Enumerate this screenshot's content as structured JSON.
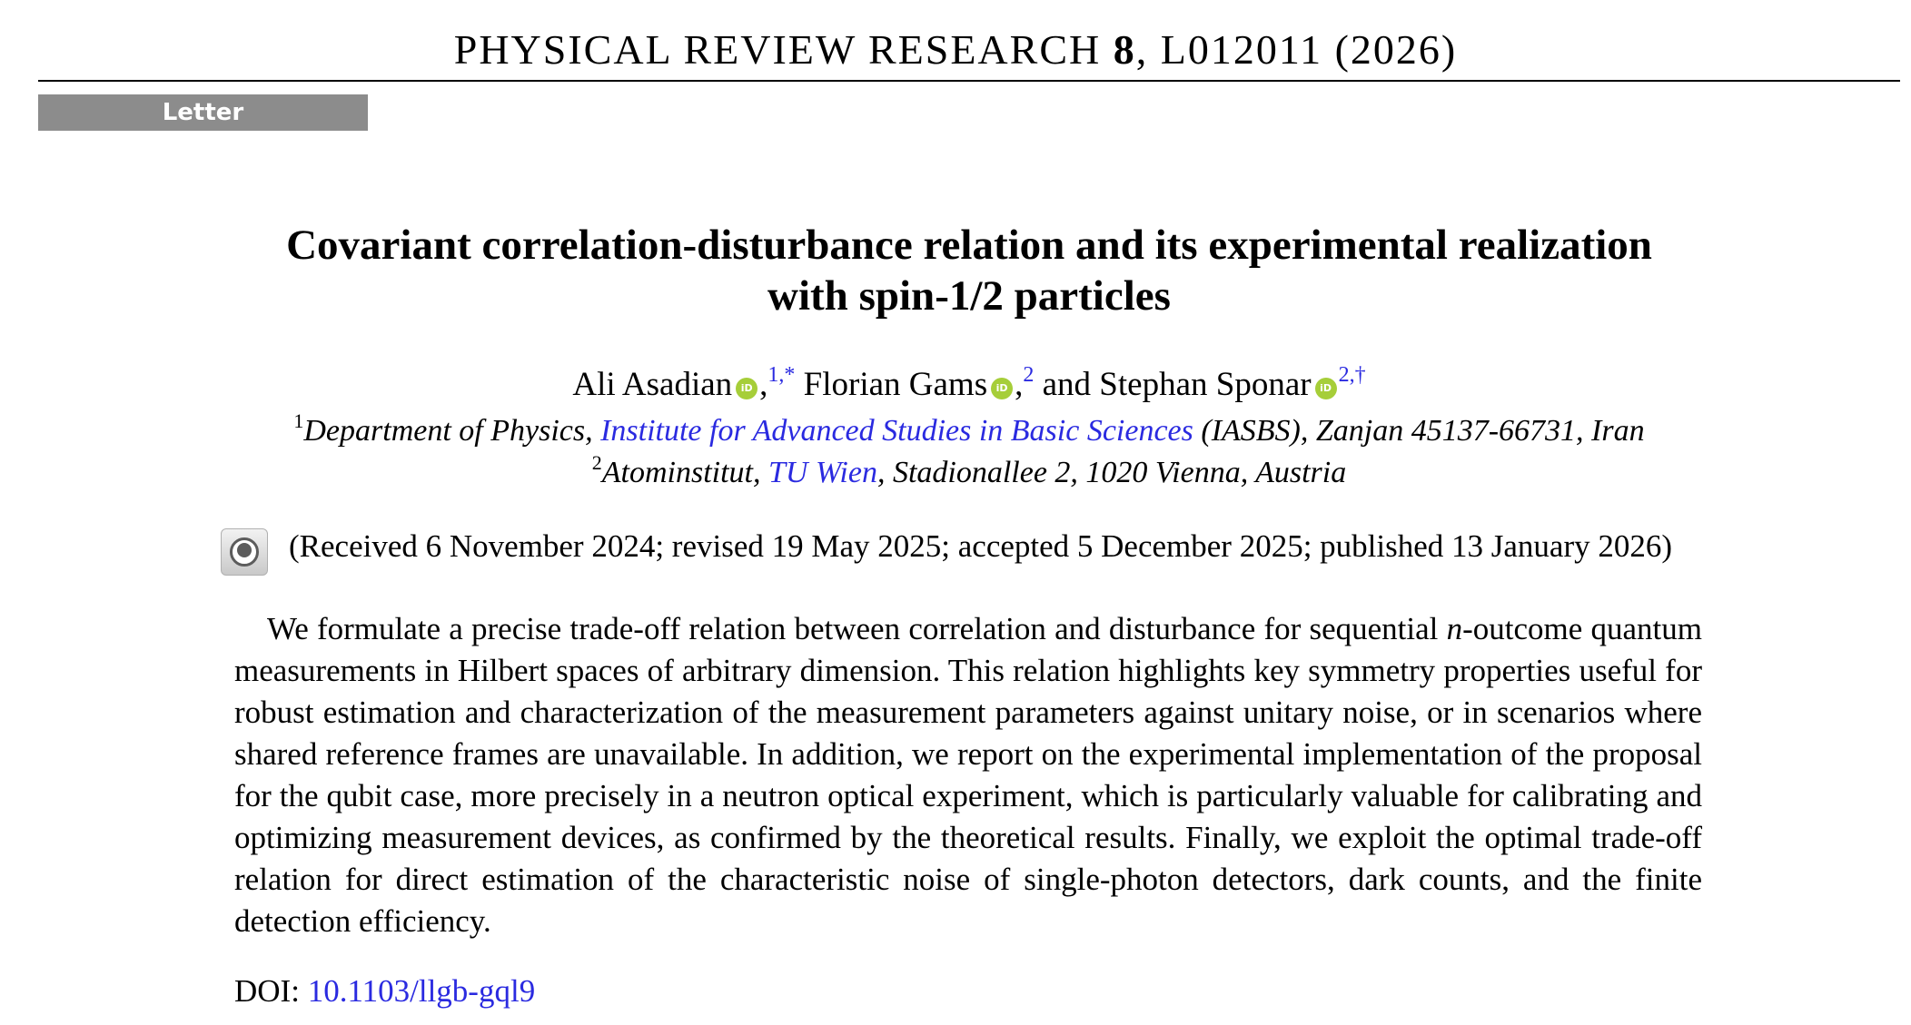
{
  "header": {
    "journal_name": "PHYSICAL REVIEW RESEARCH",
    "volume": "8",
    "citation": ", L012011 (2026)",
    "article_type": "Letter"
  },
  "title": {
    "line1": "Covariant correlation-disturbance relation and its experimental realization",
    "line2": "with spin-1/2 particles"
  },
  "authors": [
    {
      "name": "Ali Asadian",
      "affil": "1,*"
    },
    {
      "name": "Florian Gams",
      "affil": "2"
    },
    {
      "name": "Stephan Sponar",
      "affil": "2,†"
    }
  ],
  "authors_sep": {
    "comma": ",",
    "and": "and"
  },
  "orcid_label": "iD",
  "affiliations": [
    {
      "num": "1",
      "prefix": "Department of Physics, ",
      "link": "Institute for Advanced Studies in Basic Sciences",
      "suffix": " (IASBS), Zanjan 45137-66731, Iran"
    },
    {
      "num": "2",
      "prefix": "Atominstitut, ",
      "link": "TU Wien",
      "suffix": ", Stadionallee 2, 1020 Vienna, Austria"
    }
  ],
  "history": "(Received 6 November 2024; revised 19 May 2025; accepted 5 December 2025; published 13 January 2026)",
  "abstract": {
    "part1": "We formulate a precise trade-off relation between correlation and disturbance for sequential ",
    "italic_n": "n",
    "part2": "-outcome quantum measurements in Hilbert spaces of arbitrary dimension. This relation highlights key symmetry properties useful for robust estimation and characterization of the measurement parameters against unitary noise, or in scenarios where shared reference frames are unavailable. In addition, we report on the experimental implementation of the proposal for the qubit case, more precisely in a neutron optical experiment, which is particularly valuable for calibrating and optimizing measurement devices, as confirmed by the theoretical results. Finally, we exploit the optimal trade-off relation for direct estimation of the characteristic noise of single-photon detectors, dark counts, and the finite detection efficiency."
  },
  "doi": {
    "label": "DOI: ",
    "value": "10.1103/llgb-gql9"
  }
}
